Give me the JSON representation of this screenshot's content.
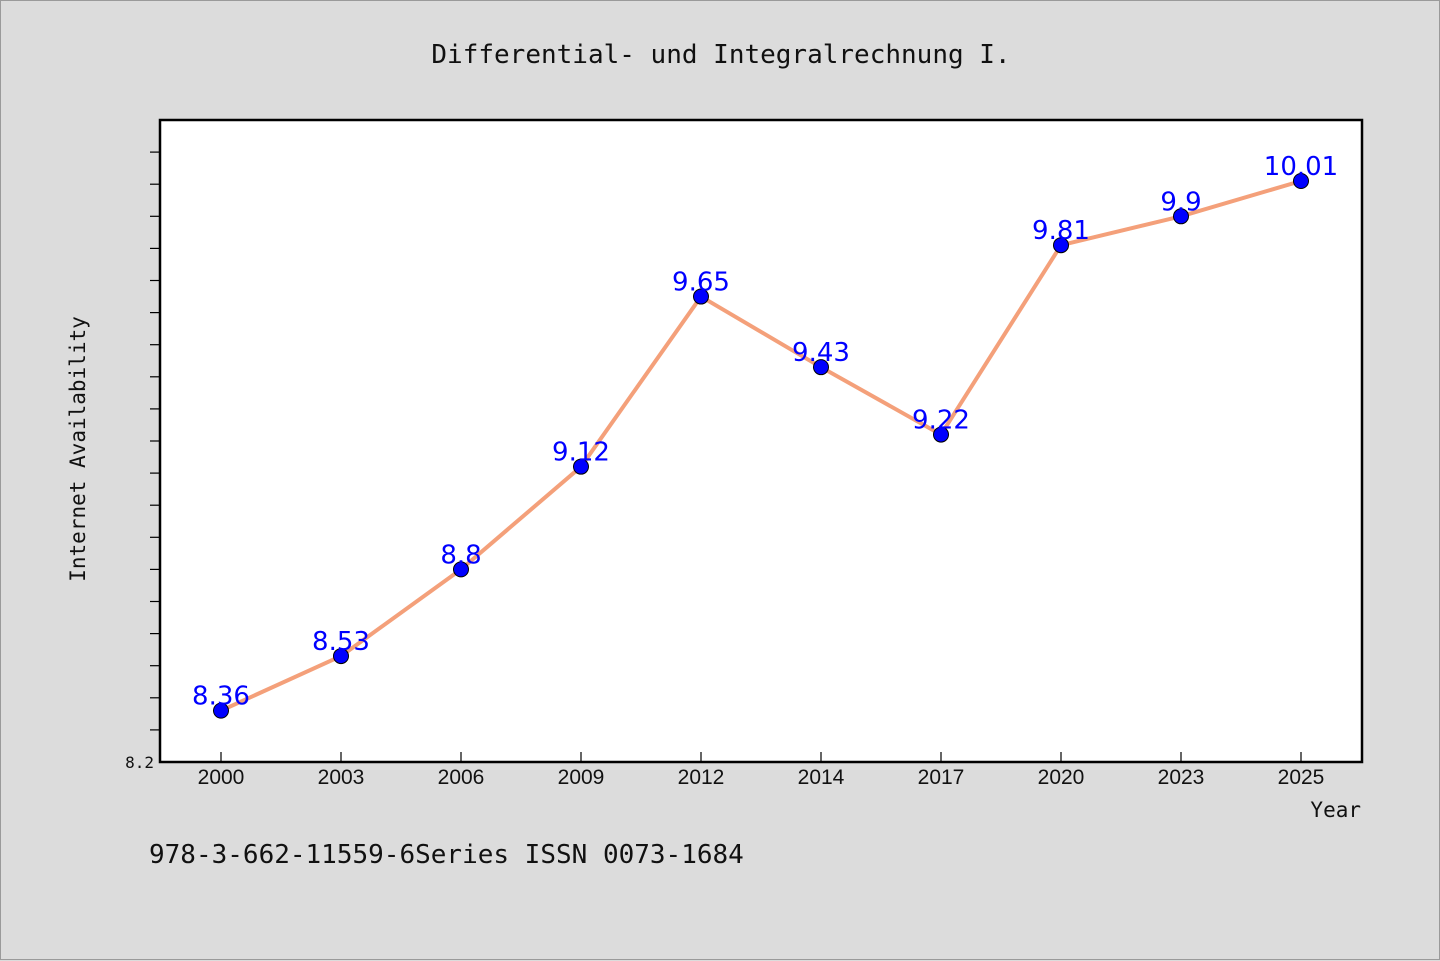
{
  "footer": "978-3-662-11559-6Series ISSN 0073-1684",
  "chart_data": {
    "type": "line",
    "title": "Differential- und Integralrechnung I.",
    "xlabel": "Year",
    "ylabel": "Internet Availability",
    "categories": [
      "2000",
      "2003",
      "2006",
      "2009",
      "2012",
      "2014",
      "2017",
      "2020",
      "2023",
      "2025"
    ],
    "series": [
      {
        "values": [
          8.36,
          8.53,
          8.8,
          9.12,
          9.65,
          9.43,
          9.22,
          9.81,
          9.9,
          10.01
        ],
        "labels": [
          "8.36",
          "8.53",
          "8.8",
          "9.12",
          "9.65",
          "9.43",
          "9.22",
          "9.81",
          "9.9",
          "10.01"
        ]
      }
    ],
    "ylim": [
      8.2,
      10.2
    ],
    "y_tick_labels": [
      "8.2"
    ],
    "y_minor_tick_step": 0.1,
    "grid": false,
    "line_color": "#f4a07a",
    "marker_color": "#0000ff",
    "label_color": "#0000ff"
  }
}
